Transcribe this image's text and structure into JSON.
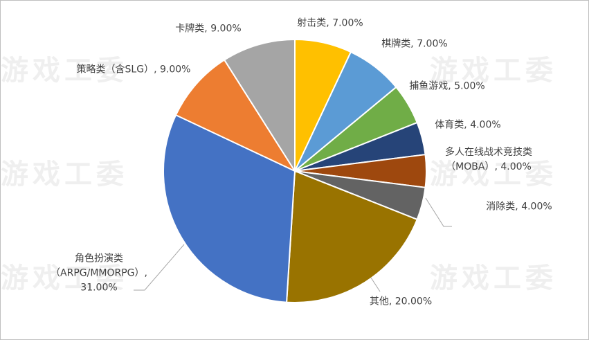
{
  "chart_data": {
    "type": "pie",
    "categories": [
      "射击类",
      "棋牌类",
      "捕鱼游戏",
      "体育类",
      "多人在线战术竞技类（MOBA）",
      "消除类",
      "其他",
      "角色扮演类（ARPG/MMORPG）",
      "策略类（含SLG）",
      "卡牌类"
    ],
    "values": [
      7,
      7,
      5,
      4,
      4,
      4,
      20,
      31,
      9,
      9
    ],
    "value_labels": [
      "7.00%",
      "7.00%",
      "5.00%",
      "4.00%",
      "4.00%",
      "4.00%",
      "20.00%",
      "31.00%",
      "9.00%",
      "9.00%"
    ],
    "label_separator": ", ",
    "colors": [
      "#ffc000",
      "#5b9bd5",
      "#70ad47",
      "#264478",
      "#9e480e",
      "#636363",
      "#997300",
      "#4472c4",
      "#ed7d31",
      "#a5a5a5"
    ]
  },
  "watermark": "游戏工委"
}
